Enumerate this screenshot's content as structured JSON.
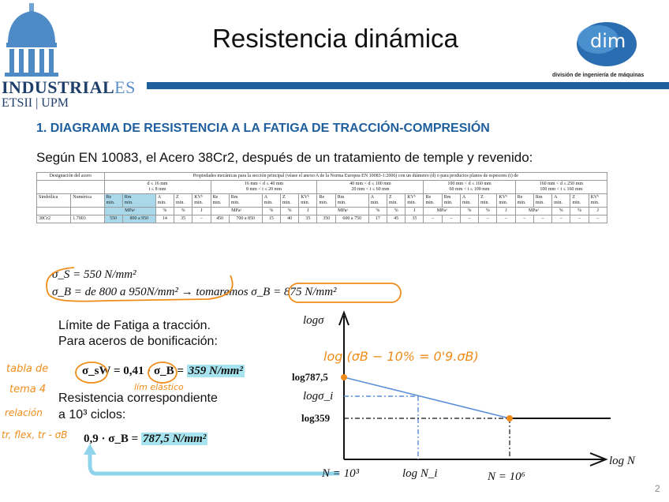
{
  "header": {
    "title": "Resistencia dinámica",
    "logo_left_main": "INDUSTRIAL",
    "logo_left_suffix": "ES",
    "logo_left_sub": "ETSII | UPM",
    "logo_right_word": "dim",
    "logo_right_sub": "división de ingeniería de máquinas",
    "accent": "#1f5f9e"
  },
  "section": {
    "heading": "1. DIAGRAMA DE RESISTENCIA A LA FATIGA DE TRACCIÓN-COMPRESIÓN",
    "intro": "Según EN 10083, el Acero 38Cr2, después de un tratamiento de temple y revenido:"
  },
  "table": {
    "col_designacion": "Designación del acero",
    "col_propiedades": "Propiedades mecánicas para la sección principal (véase el anexo A de la Norma Europea EN 10083-1:2006) con un diámetro (d) o para productos planos de espesores (t) de",
    "col_simbolica": "Simbólica",
    "col_numerica": "Numérica",
    "ranges": [
      {
        "l1": "d ≤ 16 mm",
        "l2": "t ≤ 8 mm"
      },
      {
        "l1": "16 mm < d ≤ 40 mm",
        "l2": "8 mm < t ≤ 20 mm"
      },
      {
        "l1": "40 mm < d ≤ 100 mm",
        "l2": "20 mm < t ≤ 60 mm"
      },
      {
        "l1": "100 mm < d ≤ 160 mm",
        "l2": "60 mm < t ≤ 100 mm"
      },
      {
        "l1": "160 mm < d ≤ 250 mm",
        "l2": "100 mm < t ≤ 160 mm"
      }
    ],
    "sub_headers": [
      "Re",
      "Rm",
      "A",
      "Z",
      "KVᵇ"
    ],
    "sub_min": "min.",
    "unit_mpa": "MPaᵃ",
    "unit_pct": "%",
    "unit_j": "J",
    "row": {
      "simbolica": "38Cr2",
      "numerica": "1.7003",
      "values": [
        "550",
        "800 a 950",
        "14",
        "35",
        "–",
        "450",
        "700 a 850",
        "15",
        "40",
        "35",
        "350",
        "600 a 750",
        "17",
        "45",
        "35",
        "–",
        "–",
        "–",
        "–",
        "–",
        "–",
        "–",
        "–",
        "–",
        "–"
      ]
    }
  },
  "formulas": {
    "sigma_s": "σ_S = 550 N/mm²",
    "sigma_b": "σ_B = de  800 a 950N/mm² → tomaremos  σ_B = 875 N/mm²",
    "fatigue_label_1": "Límite de Fatiga a tracción.",
    "fatigue_label_2": "Para aceros de bonificación:",
    "sigma_sw_lhs": "σ_sW = 0,41 · σ_B =",
    "sigma_sw_value": "359 N/mm²",
    "resist_label_1": "Resistencia correspondiente",
    "resist_label_2": "a 10³ ciclos:",
    "resist_lhs": "0,9 · σ_B =",
    "resist_value": "787,5 N/mm²"
  },
  "handwritten": {
    "note_1": "tabla de",
    "note_2": "tema 4",
    "note_3": "relación",
    "note_4": "tr, flex, tr - σB",
    "note_limite": "lím elástico",
    "note_graph": "log (σB − 10% = 0'9.σB)"
  },
  "graph": {
    "y_axis": "logσ",
    "x_axis": "log N",
    "y_tick_1": "log787,5",
    "y_tick_2": "logσ_i",
    "y_tick_3": "log359",
    "x_tick_1": "N = 10³",
    "x_tick_2": "log N_i",
    "x_tick_3": "N = 10⁶",
    "line_color": "#5b8fd6",
    "point_color": "#f08c1a"
  },
  "footer": {
    "page_number": "2"
  }
}
